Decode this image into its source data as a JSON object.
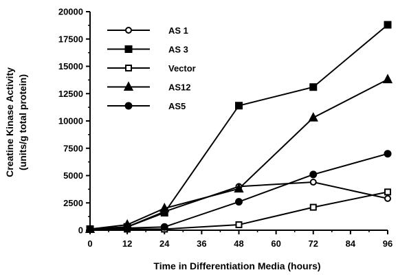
{
  "chart_data": {
    "type": "line",
    "title": "",
    "xlabel": "Time in Differentiation Media (hours)",
    "ylabel_lines": [
      "Creatine Kinase Activity",
      "(units/g total protein)"
    ],
    "xlim": [
      0,
      96
    ],
    "ylim": [
      0,
      20000
    ],
    "x_ticks": [
      0,
      12,
      24,
      36,
      48,
      60,
      72,
      84,
      96
    ],
    "y_ticks": [
      0,
      2500,
      5000,
      7500,
      10000,
      12500,
      15000,
      17500,
      20000
    ],
    "grid": false,
    "legend_position": "top-left",
    "series": [
      {
        "name": "AS 1",
        "marker": "circle-open",
        "x": [
          0,
          12,
          24,
          48,
          72,
          96
        ],
        "y": [
          100,
          300,
          1700,
          4000,
          4400,
          2900
        ]
      },
      {
        "name": "AS 3",
        "marker": "square-filled",
        "x": [
          0,
          12,
          24,
          48,
          72,
          96
        ],
        "y": [
          100,
          300,
          1600,
          11400,
          13100,
          18800
        ]
      },
      {
        "name": "Vector",
        "marker": "square-open",
        "x": [
          0,
          12,
          24,
          48,
          72,
          96
        ],
        "y": [
          100,
          100,
          100,
          500,
          2100,
          3500
        ]
      },
      {
        "name": "AS12",
        "marker": "triangle-filled",
        "x": [
          0,
          12,
          24,
          48,
          72,
          96
        ],
        "y": [
          100,
          500,
          2000,
          3800,
          10300,
          13800
        ]
      },
      {
        "name": "AS5",
        "marker": "circle-filled",
        "x": [
          0,
          12,
          24,
          48,
          72,
          96
        ],
        "y": [
          100,
          200,
          300,
          2600,
          5100,
          7000
        ]
      }
    ]
  }
}
